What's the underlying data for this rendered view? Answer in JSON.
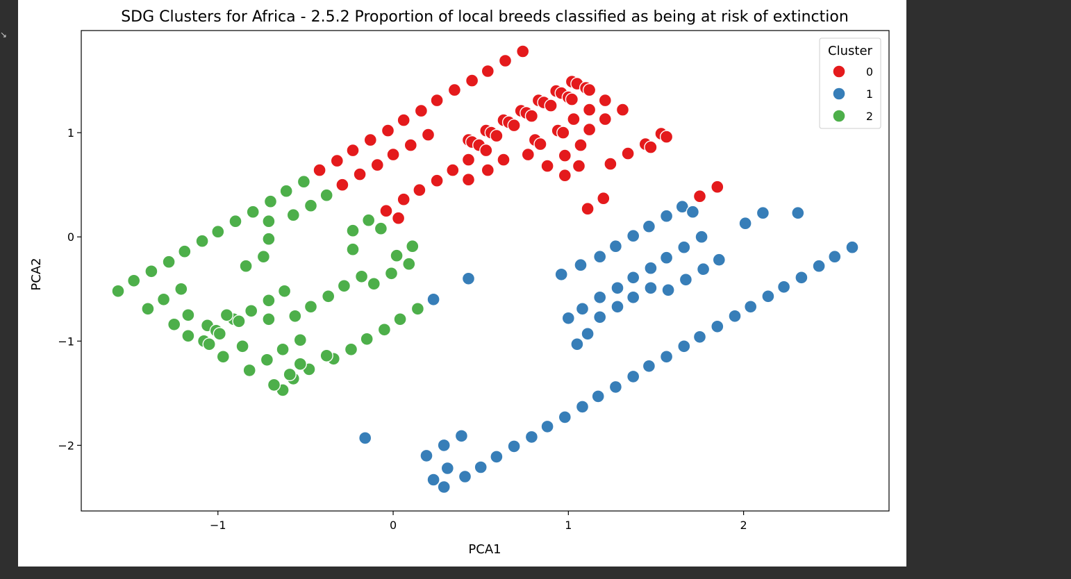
{
  "chart_data": {
    "type": "scatter",
    "title": "SDG Clusters for Africa - 2.5.2 Proportion of local breeds classified as being at risk of extinction",
    "xlabel": "PCA1",
    "ylabel": "PCA2",
    "xlim": [
      -1.78,
      2.83
    ],
    "ylim": [
      -2.63,
      1.98
    ],
    "xticks": [
      -1,
      0,
      1,
      2
    ],
    "yticks": [
      -2,
      -1,
      0,
      1
    ],
    "xtick_labels": [
      "−1",
      "0",
      "1",
      "2"
    ],
    "ytick_labels": [
      "−2",
      "−1",
      "0",
      "1"
    ],
    "grid": false,
    "legend": {
      "title": "Cluster",
      "placement": "top-right",
      "entries": [
        "0",
        "1",
        "2"
      ]
    },
    "series": [
      {
        "name": "0",
        "color": "#e41a1c",
        "points": [
          [
            0.74,
            1.78
          ],
          [
            0.64,
            1.69
          ],
          [
            0.54,
            1.59
          ],
          [
            0.45,
            1.5
          ],
          [
            0.35,
            1.41
          ],
          [
            0.25,
            1.31
          ],
          [
            0.16,
            1.21
          ],
          [
            0.06,
            1.12
          ],
          [
            -0.03,
            1.02
          ],
          [
            -0.13,
            0.93
          ],
          [
            -0.23,
            0.83
          ],
          [
            -0.32,
            0.73
          ],
          [
            -0.42,
            0.64
          ],
          [
            0.2,
            0.98
          ],
          [
            0.1,
            0.88
          ],
          [
            0.0,
            0.79
          ],
          [
            -0.09,
            0.69
          ],
          [
            -0.19,
            0.6
          ],
          [
            -0.29,
            0.5
          ],
          [
            1.02,
            1.49
          ],
          [
            1.05,
            1.47
          ],
          [
            1.1,
            1.43
          ],
          [
            1.12,
            1.41
          ],
          [
            0.93,
            1.4
          ],
          [
            0.96,
            1.38
          ],
          [
            0.83,
            1.31
          ],
          [
            0.86,
            1.29
          ],
          [
            0.9,
            1.26
          ],
          [
            1.0,
            1.34
          ],
          [
            1.02,
            1.32
          ],
          [
            1.21,
            1.31
          ],
          [
            1.31,
            1.22
          ],
          [
            1.12,
            1.22
          ],
          [
            1.03,
            1.13
          ],
          [
            0.94,
            1.02
          ],
          [
            0.97,
            1.0
          ],
          [
            1.12,
            1.03
          ],
          [
            1.21,
            1.13
          ],
          [
            0.73,
            1.21
          ],
          [
            0.76,
            1.19
          ],
          [
            0.79,
            1.16
          ],
          [
            0.63,
            1.12
          ],
          [
            0.66,
            1.1
          ],
          [
            0.69,
            1.07
          ],
          [
            0.53,
            1.02
          ],
          [
            0.56,
            1.0
          ],
          [
            0.59,
            0.97
          ],
          [
            0.43,
            0.93
          ],
          [
            0.45,
            0.91
          ],
          [
            0.49,
            0.88
          ],
          [
            0.53,
            0.83
          ],
          [
            0.81,
            0.93
          ],
          [
            0.84,
            0.89
          ],
          [
            0.98,
            0.78
          ],
          [
            1.07,
            0.88
          ],
          [
            1.06,
            0.68
          ],
          [
            0.88,
            0.68
          ],
          [
            0.77,
            0.79
          ],
          [
            0.98,
            0.59
          ],
          [
            1.44,
            0.89
          ],
          [
            1.47,
            0.86
          ],
          [
            1.53,
            0.99
          ],
          [
            1.56,
            0.96
          ],
          [
            1.34,
            0.8
          ],
          [
            1.24,
            0.7
          ],
          [
            0.63,
            0.74
          ],
          [
            0.54,
            0.64
          ],
          [
            0.43,
            0.74
          ],
          [
            0.43,
            0.55
          ],
          [
            0.34,
            0.64
          ],
          [
            0.25,
            0.54
          ],
          [
            0.15,
            0.45
          ],
          [
            0.06,
            0.36
          ],
          [
            -0.04,
            0.25
          ],
          [
            0.03,
            0.18
          ],
          [
            1.11,
            0.27
          ],
          [
            1.2,
            0.37
          ],
          [
            1.75,
            0.39
          ],
          [
            1.85,
            0.48
          ]
        ]
      },
      {
        "name": "1",
        "color": "#377eb8",
        "points": [
          [
            1.65,
            0.29
          ],
          [
            1.71,
            0.24
          ],
          [
            1.56,
            0.2
          ],
          [
            1.46,
            0.1
          ],
          [
            1.37,
            0.01
          ],
          [
            1.27,
            -0.09
          ],
          [
            1.18,
            -0.19
          ],
          [
            1.07,
            -0.27
          ],
          [
            0.96,
            -0.36
          ],
          [
            1.76,
            0.0
          ],
          [
            1.66,
            -0.1
          ],
          [
            1.56,
            -0.2
          ],
          [
            1.47,
            -0.3
          ],
          [
            1.37,
            -0.39
          ],
          [
            1.28,
            -0.49
          ],
          [
            1.18,
            -0.58
          ],
          [
            1.08,
            -0.69
          ],
          [
            1.0,
            -0.78
          ],
          [
            2.01,
            0.13
          ],
          [
            2.11,
            0.23
          ],
          [
            2.31,
            0.23
          ],
          [
            1.86,
            -0.22
          ],
          [
            1.77,
            -0.31
          ],
          [
            1.67,
            -0.41
          ],
          [
            1.57,
            -0.51
          ],
          [
            1.47,
            -0.49
          ],
          [
            1.37,
            -0.58
          ],
          [
            1.28,
            -0.67
          ],
          [
            1.18,
            -0.77
          ],
          [
            1.11,
            -0.93
          ],
          [
            1.05,
            -1.03
          ],
          [
            2.62,
            -0.1
          ],
          [
            2.52,
            -0.19
          ],
          [
            2.43,
            -0.28
          ],
          [
            2.33,
            -0.39
          ],
          [
            2.23,
            -0.48
          ],
          [
            2.14,
            -0.57
          ],
          [
            2.04,
            -0.67
          ],
          [
            1.95,
            -0.76
          ],
          [
            1.85,
            -0.86
          ],
          [
            1.75,
            -0.96
          ],
          [
            1.66,
            -1.05
          ],
          [
            1.56,
            -1.15
          ],
          [
            1.46,
            -1.24
          ],
          [
            1.37,
            -1.34
          ],
          [
            1.27,
            -1.44
          ],
          [
            1.17,
            -1.53
          ],
          [
            1.08,
            -1.63
          ],
          [
            0.98,
            -1.73
          ],
          [
            0.88,
            -1.82
          ],
          [
            0.79,
            -1.92
          ],
          [
            0.69,
            -2.01
          ],
          [
            0.59,
            -2.11
          ],
          [
            0.5,
            -2.21
          ],
          [
            0.41,
            -2.3
          ],
          [
            0.31,
            -2.22
          ],
          [
            0.29,
            -2.4
          ],
          [
            0.23,
            -2.33
          ],
          [
            0.19,
            -2.1
          ],
          [
            0.29,
            -2.0
          ],
          [
            0.39,
            -1.91
          ],
          [
            -0.16,
            -1.93
          ],
          [
            0.43,
            -0.4
          ],
          [
            0.23,
            -0.6
          ]
        ]
      },
      {
        "name": "2",
        "color": "#4daf4a",
        "points": [
          [
            -0.51,
            0.53
          ],
          [
            -0.61,
            0.44
          ],
          [
            -0.7,
            0.34
          ],
          [
            -0.8,
            0.24
          ],
          [
            -0.9,
            0.15
          ],
          [
            -1.0,
            0.05
          ],
          [
            -1.09,
            -0.04
          ],
          [
            -1.19,
            -0.14
          ],
          [
            -1.28,
            -0.24
          ],
          [
            -1.38,
            -0.33
          ],
          [
            -1.48,
            -0.42
          ],
          [
            -1.57,
            -0.52
          ],
          [
            -0.38,
            0.4
          ],
          [
            -0.47,
            0.3
          ],
          [
            -0.57,
            0.21
          ],
          [
            -0.71,
            0.15
          ],
          [
            -0.71,
            -0.02
          ],
          [
            -0.74,
            -0.19
          ],
          [
            -0.84,
            -0.28
          ],
          [
            -0.23,
            0.06
          ],
          [
            -0.14,
            0.16
          ],
          [
            -0.07,
            0.08
          ],
          [
            -0.23,
            -0.12
          ],
          [
            0.11,
            -0.09
          ],
          [
            0.02,
            -0.18
          ],
          [
            0.09,
            -0.26
          ],
          [
            -0.01,
            -0.35
          ],
          [
            -0.11,
            -0.45
          ],
          [
            -0.18,
            -0.38
          ],
          [
            -0.28,
            -0.47
          ],
          [
            -0.37,
            -0.57
          ],
          [
            -0.47,
            -0.67
          ],
          [
            -0.62,
            -0.52
          ],
          [
            -0.71,
            -0.61
          ],
          [
            -0.81,
            -0.71
          ],
          [
            -0.91,
            -0.79
          ],
          [
            -0.88,
            -0.81
          ],
          [
            -0.95,
            -0.75
          ],
          [
            -0.71,
            -0.79
          ],
          [
            -0.56,
            -0.76
          ],
          [
            -1.21,
            -0.5
          ],
          [
            -1.31,
            -0.6
          ],
          [
            -1.4,
            -0.69
          ],
          [
            -1.17,
            -0.75
          ],
          [
            -1.25,
            -0.84
          ],
          [
            -1.06,
            -0.85
          ],
          [
            -1.01,
            -0.9
          ],
          [
            -0.99,
            -0.93
          ],
          [
            -1.08,
            -1.0
          ],
          [
            -1.05,
            -1.03
          ],
          [
            -1.17,
            -0.95
          ],
          [
            -0.97,
            -1.15
          ],
          [
            0.14,
            -0.69
          ],
          [
            0.04,
            -0.79
          ],
          [
            -0.05,
            -0.89
          ],
          [
            -0.15,
            -0.98
          ],
          [
            -0.24,
            -1.08
          ],
          [
            -0.34,
            -1.17
          ],
          [
            -0.38,
            -1.14
          ],
          [
            -0.48,
            -1.27
          ],
          [
            -0.53,
            -1.22
          ],
          [
            -0.57,
            -1.36
          ],
          [
            -0.59,
            -1.32
          ],
          [
            -0.63,
            -1.47
          ],
          [
            -0.68,
            -1.42
          ],
          [
            -0.53,
            -0.99
          ],
          [
            -0.63,
            -1.08
          ],
          [
            -0.72,
            -1.18
          ],
          [
            -0.82,
            -1.28
          ],
          [
            -0.86,
            -1.05
          ]
        ]
      }
    ]
  }
}
